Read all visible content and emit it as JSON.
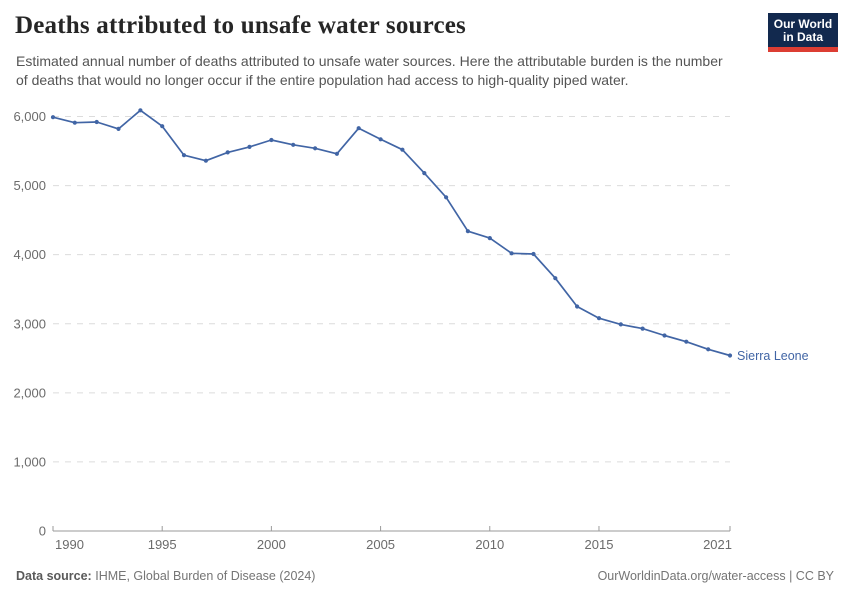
{
  "header": {
    "title": "Deaths attributed to unsafe water sources",
    "subtitle": "Estimated annual number of deaths attributed to unsafe water sources. Here the attributable burden is the number of deaths that would no longer occur if the entire population had access to high-quality piped water."
  },
  "logo": {
    "line1": "Our World",
    "line2": "in Data",
    "bg_color": "#12294e",
    "accent_color": "#dc3d33"
  },
  "chart_data": {
    "type": "line",
    "title": "Deaths attributed to unsafe water sources",
    "x": [
      1990,
      1991,
      1992,
      1993,
      1994,
      1995,
      1996,
      1997,
      1998,
      1999,
      2000,
      2001,
      2002,
      2003,
      2004,
      2005,
      2006,
      2007,
      2008,
      2009,
      2010,
      2011,
      2012,
      2013,
      2014,
      2015,
      2016,
      2017,
      2018,
      2019,
      2020,
      2021
    ],
    "series": [
      {
        "name": "Sierra Leone",
        "color": "#4165a5",
        "values": [
          5990,
          5910,
          5920,
          5820,
          6090,
          5860,
          5440,
          5360,
          5480,
          5560,
          5660,
          5590,
          5540,
          5460,
          5830,
          5670,
          5520,
          5180,
          4830,
          4340,
          4240,
          4020,
          4010,
          3660,
          3250,
          3080,
          2990,
          2930,
          2830,
          2740,
          2630,
          2540
        ]
      }
    ],
    "xlabel": "",
    "ylabel": "",
    "ylim": [
      0,
      6200
    ],
    "yticks": [
      0,
      1000,
      2000,
      3000,
      4000,
      5000,
      6000
    ],
    "xticks": [
      1990,
      1995,
      2000,
      2005,
      2010,
      2015,
      2021
    ],
    "grid": "horizontal-dashed",
    "legend": "end-of-line-label",
    "grid_color": "#dcdcdc",
    "axis_color": "#9a9a9a",
    "tick_label_color": "#6b6b6b"
  },
  "footer": {
    "source_label": "Data source:",
    "source_text": "IHME, Global Burden of Disease (2024)",
    "credit": "OurWorldinData.org/water-access | CC BY"
  }
}
